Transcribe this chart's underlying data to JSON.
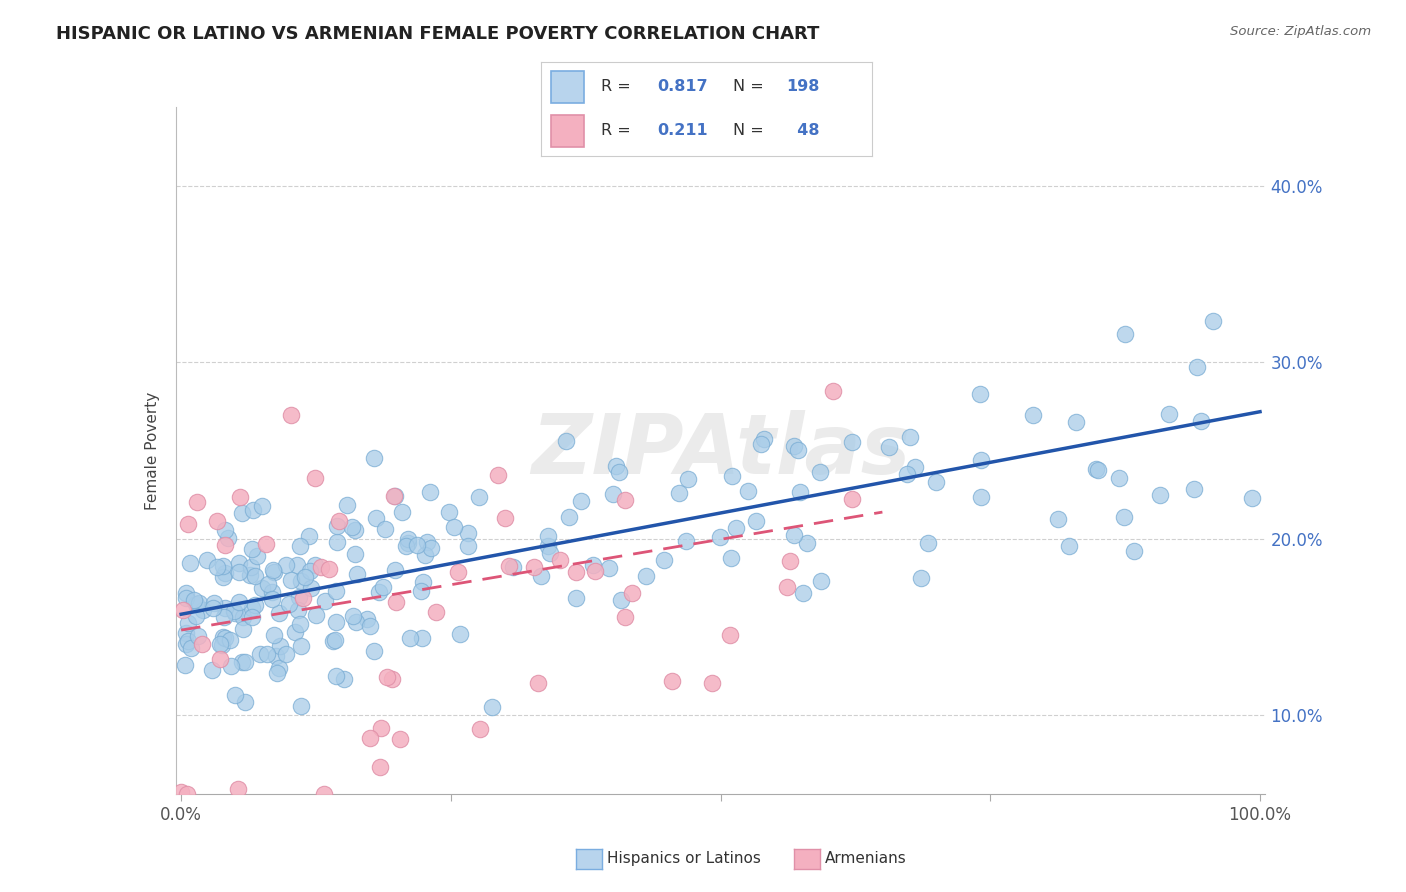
{
  "title": "HISPANIC OR LATINO VS ARMENIAN FEMALE POVERTY CORRELATION CHART",
  "source": "Source: ZipAtlas.com",
  "ylabel_label": "Female Poverty",
  "blue_r": "0.817",
  "blue_n": "198",
  "pink_r": "0.211",
  "pink_n": "48",
  "blue_scatter_color": "#a8cce8",
  "blue_scatter_edge": "#7aadd4",
  "pink_scatter_color": "#f4b0c0",
  "pink_scatter_edge": "#e090a8",
  "blue_line_color": "#2255aa",
  "pink_line_color": "#dd5577",
  "grid_color": "#d0d0d0",
  "title_color": "#222222",
  "right_tick_color": "#4472c4",
  "watermark_text": "ZIPAtlas",
  "watermark_color": "#ebebeb",
  "legend_text_color": "#333333",
  "legend_value_color": "#4472c4",
  "xlim": [
    -0.005,
    1.005
  ],
  "ylim": [
    0.055,
    0.445
  ],
  "yticks": [
    0.1,
    0.2,
    0.3,
    0.4
  ],
  "ytick_labels": [
    "10.0%",
    "20.0%",
    "30.0%",
    "40.0%"
  ],
  "xticks": [
    0.0,
    0.25,
    0.5,
    0.75,
    1.0
  ],
  "xtick_labels": [
    "0.0%",
    "",
    "",
    "",
    "100.0%"
  ],
  "bottom_legend_1": "Hispanics or Latinos",
  "bottom_legend_2": "Armenians"
}
